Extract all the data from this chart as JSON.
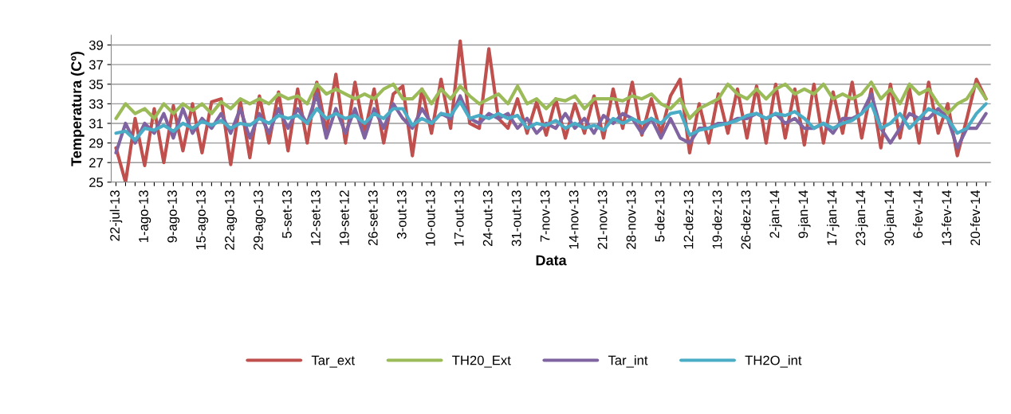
{
  "chart_data": {
    "type": "line",
    "xlabel": "Data",
    "ylabel": "Temperatura (Cº)",
    "categories": [
      "22-jul-13",
      null,
      null,
      "1-ago-13",
      null,
      null,
      "9-ago-13",
      null,
      null,
      "15-ago-13",
      null,
      null,
      "22-ago-13",
      null,
      null,
      "29-ago-13",
      null,
      null,
      "5-set-13",
      null,
      null,
      "12-set-13",
      null,
      null,
      "19-set-12",
      null,
      null,
      "26-set-13",
      null,
      null,
      "3-out-13",
      null,
      null,
      "10-out-13",
      null,
      null,
      "17-out-13",
      null,
      null,
      "24-out-13",
      null,
      null,
      "31-out-13",
      null,
      null,
      "7-nov-13",
      null,
      null,
      "14-nov-13",
      null,
      null,
      "21-nov-13",
      null,
      null,
      "28-nov-13",
      null,
      null,
      "5-dez-13",
      null,
      null,
      "12-dez-13",
      null,
      null,
      "19-dez-13",
      null,
      null,
      "26-dez-13",
      null,
      null,
      "2-jan-14",
      null,
      null,
      "9-jan-14",
      null,
      null,
      "17-jan-14",
      null,
      null,
      "23-jan-14",
      null,
      null,
      "30-jan-14",
      null,
      null,
      "6-fev-14",
      null,
      null,
      "13-fev-14",
      null,
      null,
      "20-fev-14",
      null
    ],
    "series": [
      {
        "name": "Tar_ext",
        "color": "#c0504d",
        "values": [
          28.5,
          25.0,
          31.5,
          26.7,
          32.5,
          27.0,
          32.8,
          28.2,
          33.0,
          28.0,
          33.2,
          33.5,
          26.8,
          33.3,
          27.5,
          33.8,
          29.0,
          34.2,
          28.2,
          34.5,
          29.0,
          35.2,
          30.2,
          36.0,
          29.0,
          35.2,
          30.0,
          34.5,
          29.0,
          34.0,
          34.8,
          27.7,
          34.5,
          30.0,
          35.5,
          30.5,
          39.4,
          31.0,
          30.5,
          38.6,
          31.5,
          30.5,
          33.5,
          30.0,
          33.2,
          29.8,
          33.5,
          29.5,
          33.0,
          30.0,
          33.8,
          29.5,
          34.5,
          30.5,
          35.2,
          29.8,
          33.5,
          30.0,
          33.8,
          35.5,
          28.0,
          33.0,
          29.0,
          34.0,
          30.0,
          34.5,
          29.5,
          34.8,
          29.0,
          35.0,
          29.5,
          34.5,
          28.8,
          35.0,
          29.0,
          34.2,
          30.0,
          35.2,
          29.5,
          34.5,
          28.5,
          35.0,
          29.5,
          34.5,
          29.0,
          35.2,
          30.0,
          33.0,
          27.7,
          31.5,
          35.5,
          33.5
        ]
      },
      {
        "name": "TH20_Ext",
        "color": "#9bbb59",
        "values": [
          31.5,
          33.0,
          32.0,
          32.5,
          31.5,
          33.0,
          32.0,
          33.0,
          32.3,
          33.0,
          32.0,
          33.2,
          32.5,
          33.5,
          33.0,
          33.5,
          33.0,
          34.0,
          33.5,
          33.8,
          33.0,
          35.0,
          34.0,
          34.5,
          34.0,
          33.5,
          34.0,
          33.5,
          34.5,
          35.0,
          33.5,
          33.5,
          34.5,
          33.0,
          34.5,
          33.5,
          34.8,
          33.8,
          33.0,
          33.5,
          34.0,
          33.0,
          34.8,
          33.0,
          33.5,
          32.5,
          33.5,
          33.3,
          33.8,
          32.5,
          33.5,
          33.5,
          33.5,
          33.3,
          33.8,
          33.5,
          34.0,
          33.0,
          32.5,
          33.5,
          31.5,
          32.5,
          33.0,
          33.5,
          35.0,
          34.0,
          33.5,
          34.5,
          33.5,
          34.5,
          35.0,
          34.0,
          34.5,
          34.0,
          35.0,
          33.5,
          34.0,
          33.5,
          34.0,
          35.2,
          33.5,
          34.5,
          33.0,
          35.0,
          34.0,
          34.5,
          33.0,
          32.0,
          33.0,
          33.5,
          35.0,
          33.5
        ]
      },
      {
        "name": "Tar_int",
        "color": "#8064a2",
        "values": [
          28.0,
          31.0,
          29.0,
          31.0,
          30.0,
          32.0,
          29.5,
          32.5,
          30.0,
          31.5,
          30.5,
          32.0,
          30.0,
          32.5,
          29.5,
          32.0,
          30.0,
          32.5,
          30.5,
          32.5,
          31.0,
          34.0,
          29.5,
          32.5,
          30.0,
          32.5,
          29.5,
          32.5,
          30.5,
          33.0,
          31.5,
          30.5,
          32.5,
          31.0,
          32.0,
          31.5,
          33.8,
          31.5,
          31.0,
          32.0,
          31.5,
          32.0,
          30.5,
          31.5,
          30.0,
          31.0,
          30.5,
          32.0,
          30.5,
          31.5,
          30.0,
          31.8,
          31.0,
          32.0,
          31.5,
          30.0,
          31.5,
          29.5,
          31.5,
          29.5,
          29.0,
          30.5,
          30.5,
          31.0,
          31.0,
          31.5,
          31.5,
          32.0,
          31.5,
          32.0,
          31.0,
          31.5,
          30.5,
          30.5,
          31.0,
          30.0,
          31.5,
          31.5,
          32.0,
          34.0,
          30.5,
          29.0,
          30.5,
          32.0,
          31.5,
          31.5,
          32.5,
          31.5,
          28.5,
          30.5,
          30.5,
          32.0
        ]
      },
      {
        "name": "TH2O_int",
        "color": "#4bacc6",
        "values": [
          30.0,
          30.2,
          29.3,
          30.5,
          30.3,
          30.8,
          30.2,
          31.0,
          30.5,
          31.2,
          30.8,
          31.3,
          30.5,
          31.0,
          30.8,
          31.5,
          31.0,
          31.8,
          31.5,
          31.8,
          31.0,
          32.5,
          31.5,
          32.0,
          31.5,
          31.8,
          31.0,
          32.0,
          31.5,
          32.5,
          32.5,
          30.8,
          31.5,
          31.0,
          32.0,
          31.8,
          33.2,
          31.5,
          31.8,
          31.5,
          32.0,
          31.5,
          31.8,
          30.5,
          31.0,
          30.8,
          31.3,
          30.5,
          31.0,
          30.5,
          30.8,
          30.3,
          31.5,
          31.0,
          31.5,
          31.0,
          31.5,
          31.0,
          32.0,
          32.2,
          29.8,
          30.3,
          30.5,
          30.8,
          31.0,
          31.3,
          31.8,
          32.0,
          31.5,
          32.0,
          31.8,
          32.2,
          31.5,
          30.5,
          31.0,
          30.5,
          31.0,
          31.3,
          32.0,
          33.0,
          30.5,
          31.0,
          32.0,
          30.5,
          31.5,
          32.5,
          32.0,
          31.5,
          30.0,
          30.5,
          32.0,
          33.0
        ]
      }
    ],
    "ylim": [
      25,
      40
    ],
    "yticks": [
      25,
      27,
      29,
      31,
      33,
      35,
      37,
      39
    ],
    "grid": "y",
    "legend": "bottom"
  }
}
